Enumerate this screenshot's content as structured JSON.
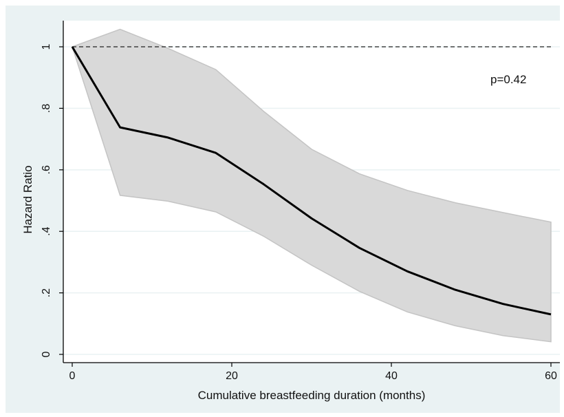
{
  "chart_data": {
    "type": "line",
    "title": "",
    "xlabel": "Cumulative breastfeeding duration (months)",
    "ylabel": "Hazard Ratio",
    "xlim": [
      0,
      60
    ],
    "ylim": [
      0,
      1.08
    ],
    "x_ticks": [
      {
        "value": 0,
        "label": "0"
      },
      {
        "value": 20,
        "label": "20"
      },
      {
        "value": 40,
        "label": "40"
      },
      {
        "value": 60,
        "label": "60"
      }
    ],
    "y_ticks": [
      {
        "value": 0,
        "label": "0"
      },
      {
        "value": 0.2,
        "label": ".2"
      },
      {
        "value": 0.4,
        "label": ".4"
      },
      {
        "value": 0.6,
        "label": ".6"
      },
      {
        "value": 0.8,
        "label": ".8"
      },
      {
        "value": 1,
        "label": "1"
      }
    ],
    "grid": true,
    "reference_line": {
      "y": 1,
      "style": "dashed"
    },
    "annotation": "p=0.42",
    "x": [
      0,
      6,
      12,
      18,
      24,
      30,
      36,
      42,
      48,
      54,
      60
    ],
    "series": [
      {
        "values": [
          1.0,
          0.738,
          0.705,
          0.655,
          0.553,
          0.442,
          0.346,
          0.27,
          0.21,
          0.164,
          0.13
        ],
        "lower": [
          1.0,
          0.517,
          0.498,
          0.463,
          0.384,
          0.29,
          0.205,
          0.138,
          0.093,
          0.061,
          0.041
        ],
        "upper": [
          1.0,
          1.057,
          0.995,
          0.926,
          0.79,
          0.667,
          0.587,
          0.533,
          0.493,
          0.461,
          0.43
        ]
      }
    ],
    "colors": {
      "line": "#000000",
      "band": "#d9d9d9",
      "band_edge": "#c4c4c4",
      "plot_bg": "#ffffff",
      "outer_bg": "#eaf2f3",
      "grid": "#eaf2f3"
    }
  }
}
